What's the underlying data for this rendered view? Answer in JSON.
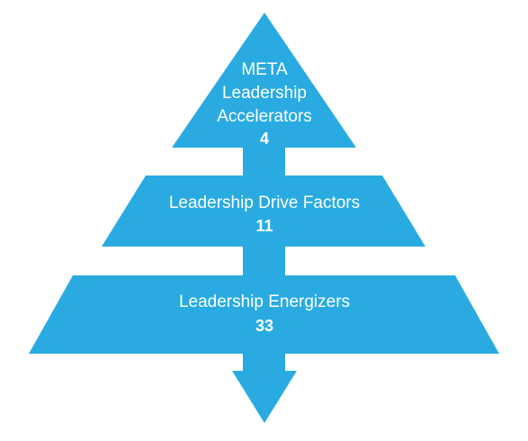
{
  "diagram": {
    "fill_color": "#29abe2",
    "text_color": "#ffffff",
    "tiers": [
      {
        "lines": [
          "META",
          "Leadership",
          "Accelerators"
        ],
        "count": "4"
      },
      {
        "lines": [
          "Leadership Drive Factors"
        ],
        "count": "11"
      },
      {
        "lines": [
          "Leadership Energizers"
        ],
        "count": "33"
      }
    ]
  }
}
